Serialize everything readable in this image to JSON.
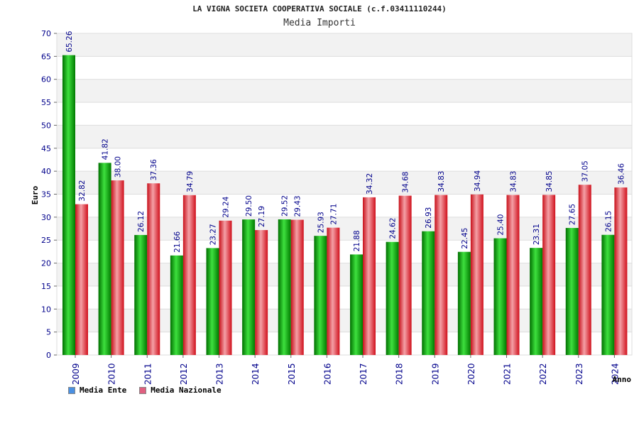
{
  "chart_data": {
    "type": "bar",
    "title": "LA VIGNA SOCIETA COOPERATIVA SOCIALE (c.f.03411110244)",
    "subtitle": "Media Importi",
    "xlabel": "Anno",
    "ylabel": "Euro",
    "ylim": [
      0,
      70
    ],
    "ytick_step": 5,
    "grid": true,
    "legend": "bottom-left",
    "categories": [
      "2009",
      "2010",
      "2011",
      "2012",
      "2013",
      "2014",
      "2015",
      "2016",
      "2017",
      "2018",
      "2019",
      "2020",
      "2021",
      "2022",
      "2023",
      "2024"
    ],
    "series": [
      {
        "name": "Media Ente",
        "color": "#00b000",
        "legend_color": "#4a90e2",
        "values": [
          65.26,
          41.82,
          26.12,
          21.66,
          23.27,
          29.5,
          29.52,
          25.93,
          21.88,
          24.62,
          26.93,
          22.45,
          25.4,
          23.31,
          27.65,
          26.15
        ],
        "labels": [
          "65.26",
          "41.82",
          "26.12",
          "21.66",
          "23.27",
          "29.50",
          "29.52",
          "25.93",
          "21.88",
          "24.62",
          "26.93",
          "22.45",
          "25.40",
          "23.31",
          "27.65",
          "26.15"
        ]
      },
      {
        "name": "Media Nazionale",
        "color": "#e8202a",
        "legend_color": "#e06080",
        "values": [
          32.82,
          38.0,
          37.36,
          34.79,
          29.24,
          27.19,
          29.43,
          27.71,
          34.32,
          34.68,
          34.83,
          34.94,
          34.83,
          34.85,
          37.05,
          36.46
        ],
        "labels": [
          "32.82",
          "38.00",
          "37.36",
          "34.79",
          "29.24",
          "27.19",
          "29.43",
          "27.71",
          "34.32",
          "34.68",
          "34.83",
          "34.94",
          "34.83",
          "34.85",
          "37.05",
          "36.46"
        ]
      }
    ]
  }
}
